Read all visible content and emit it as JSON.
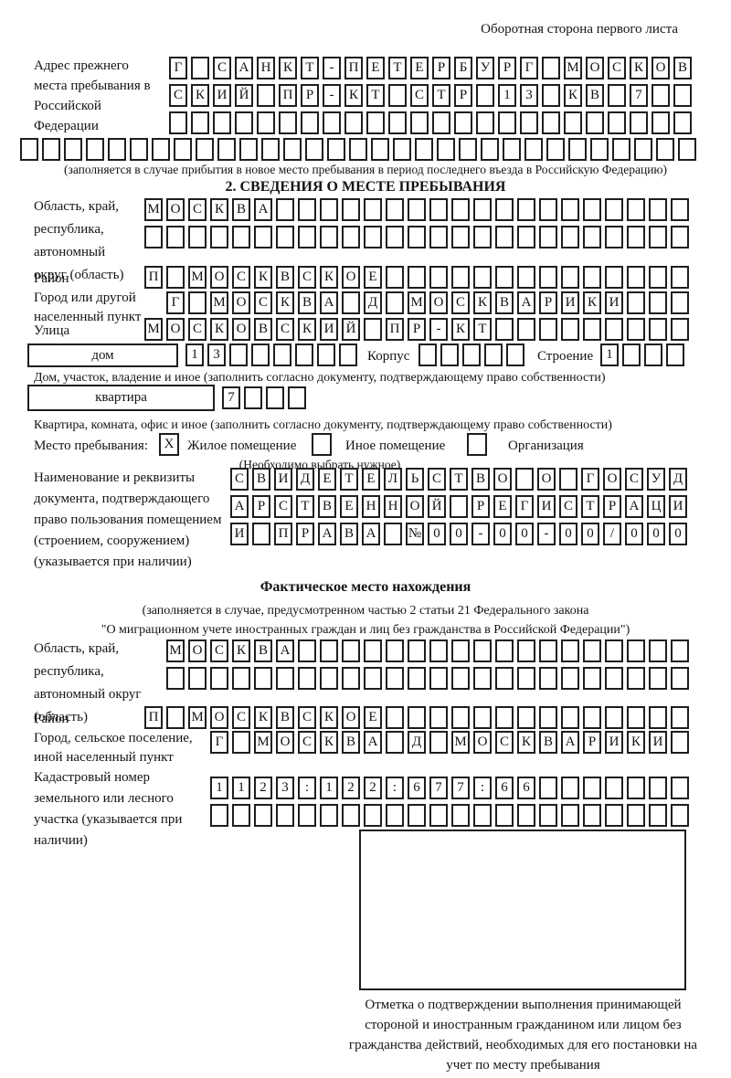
{
  "page": {
    "header_note": "Оборотная сторона первого листа"
  },
  "prev_address": {
    "label": "Адрес прежнего места пребывания в Российской Федерации",
    "rows": [
      {
        "text": "Г_САНКТ-ПЕТЕРБУРГ_МОСКОВ",
        "len": 24
      },
      {
        "text": "СКИЙ_ПР-КТ_СТР_13_КВ_7",
        "len": 24
      },
      {
        "text": "",
        "len": 24
      },
      {
        "text": "",
        "len": 31
      }
    ],
    "note": "(заполняется в случае прибытия в новое место пребывания в период последнего въезда в Российскую Федерацию)"
  },
  "section2": {
    "title": "2. СВЕДЕНИЯ О МЕСТЕ ПРЕБЫВАНИЯ",
    "region": {
      "label": "Область, край, республика, автономный округ (область)",
      "rows": [
        {
          "text": "МОСКВА",
          "len": 25
        },
        {
          "text": "",
          "len": 25
        }
      ]
    },
    "district": {
      "label": "Район",
      "row": {
        "text": "П_МОСКВСКОЕ",
        "len": 25
      }
    },
    "city": {
      "label": "Город или другой населенный пункт",
      "row": {
        "text": "Г_МОСКВА_Д_МОСКВАРИКИ",
        "len": 24
      }
    },
    "street": {
      "label": "Улица",
      "row": {
        "text": "МОСКОВСКИЙ_ПР-КТ",
        "len": 25
      }
    },
    "house": {
      "box_label": "дом",
      "row": {
        "text": "13",
        "len": 8
      },
      "korpus_label": "Корпус",
      "korpus_row": {
        "text": "",
        "len": 5
      },
      "stroenie_label": "Строение",
      "stroenie_row": {
        "text": "1",
        "len": 4
      },
      "note": "Дом, участок, владение и иное (заполнить согласно документу, подтверждающему право собственности)"
    },
    "apartment": {
      "box_label": "квартира",
      "row": {
        "text": "7",
        "len": 4
      },
      "note": "Квартира, комната, офис и иное (заполнить согласно документу, подтверждающему право собственности)"
    },
    "stay_type": {
      "label": "Место пребывания:",
      "checked_mark": "X",
      "option1": "Жилое помещение",
      "option2": "Иное помещение",
      "option3": "Организация",
      "note": "(Необходимо выбрать нужное)"
    },
    "document": {
      "label": "Наименование и реквизиты документа, подтверждающего право пользования помещением (строением, сооружением) (указывается при наличии)",
      "rows": [
        {
          "text": "СВИДЕТЕЛЬСТВО_О_ГОСУД",
          "len": 21
        },
        {
          "text": "АРСТВЕННОЙ_РЕГИСТРАЦИ",
          "len": 21
        },
        {
          "text": "И_ПРАВА_№00-00-00/000",
          "len": 21
        }
      ]
    }
  },
  "actual_location": {
    "title": "Фактическое место нахождения",
    "note_line1": "(заполняется в случае, предусмотренном частью 2 статьи 21 Федерального закона",
    "note_line2": "\"О миграционном учете иностранных граждан и лиц без гражданства в Российской Федерации\")",
    "region": {
      "label": "Область, край, республика, автономный округ (область)",
      "rows": [
        {
          "text": "МОСКВА",
          "len": 24
        },
        {
          "text": "",
          "len": 24
        }
      ]
    },
    "district": {
      "label": "Район",
      "row": {
        "text": "П_МОСКВСКОЕ",
        "len": 25
      }
    },
    "city": {
      "label": "Город, сельское поселение, иной населенный пункт",
      "row": {
        "text": "Г_МОСКВА_Д_МОСКВАРИКИ",
        "len": 22
      }
    },
    "cadastral": {
      "label": "Кадастровый номер земельного или лесного участка (указывается при наличии)",
      "rows": [
        {
          "text": "1123:122:677:66",
          "len": 22
        },
        {
          "text": "",
          "len": 22
        }
      ]
    }
  },
  "confirmation": {
    "note": "Отметка о подтверждении выполнения принимающей стороной и иностранным гражданином или лицом без гражданства действий, необходимых для его постановки на учет по месту пребывания"
  }
}
